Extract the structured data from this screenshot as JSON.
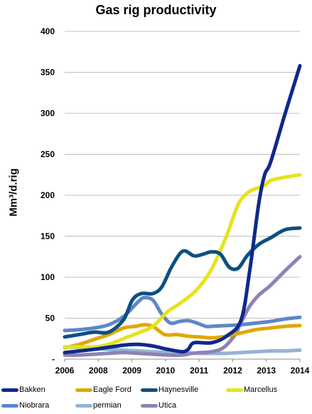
{
  "chart_data": {
    "type": "line",
    "title": "Gas rig productivity",
    "xlabel": "",
    "ylabel": "Mm³/d.rig",
    "xlim": [
      2006,
      2014
    ],
    "ylim": [
      0,
      400
    ],
    "xticks": [
      "2006",
      "2008",
      "2009",
      "2010",
      "2011",
      "2012",
      "2013",
      "2014"
    ],
    "yticks": [
      "-",
      "50",
      "100",
      "150",
      "200",
      "250",
      "300",
      "350",
      "400"
    ],
    "grid": "horizontal",
    "legend_position": "bottom",
    "series": [
      {
        "name": "Bakken",
        "color": "#0d2a8a",
        "points": [
          [
            2006,
            8
          ],
          [
            2007,
            12
          ],
          [
            2008,
            17
          ],
          [
            2008.5,
            18
          ],
          [
            2009,
            16
          ],
          [
            2009.5,
            12
          ],
          [
            2010,
            9
          ],
          [
            2010.2,
            12
          ],
          [
            2010.4,
            20
          ],
          [
            2011,
            20
          ],
          [
            2011.5,
            28
          ],
          [
            2012,
            48
          ],
          [
            2012.3,
            110
          ],
          [
            2012.6,
            190
          ],
          [
            2012.8,
            225
          ],
          [
            2013,
            240
          ],
          [
            2013.5,
            300
          ],
          [
            2014,
            358
          ]
        ]
      },
      {
        "name": "Eagle Ford",
        "color": "#e0a800",
        "points": [
          [
            2006,
            14
          ],
          [
            2006.5,
            18
          ],
          [
            2007,
            24
          ],
          [
            2007.5,
            30
          ],
          [
            2008,
            38
          ],
          [
            2008.4,
            40
          ],
          [
            2008.7,
            42
          ],
          [
            2009,
            40
          ],
          [
            2009.4,
            30
          ],
          [
            2009.8,
            30
          ],
          [
            2010.2,
            28
          ],
          [
            2010.6,
            27
          ],
          [
            2011,
            26
          ],
          [
            2011.5,
            28
          ],
          [
            2012,
            32
          ],
          [
            2012.5,
            36
          ],
          [
            2013,
            38
          ],
          [
            2013.5,
            40
          ],
          [
            2014,
            41
          ]
        ]
      },
      {
        "name": "Haynesville",
        "color": "#0d4f82",
        "points": [
          [
            2006,
            27
          ],
          [
            2006.5,
            30
          ],
          [
            2007,
            33
          ],
          [
            2007.5,
            33
          ],
          [
            2008,
            48
          ],
          [
            2008.3,
            72
          ],
          [
            2008.6,
            80
          ],
          [
            2009,
            80
          ],
          [
            2009.3,
            88
          ],
          [
            2009.6,
            110
          ],
          [
            2009.9,
            128
          ],
          [
            2010.1,
            132
          ],
          [
            2010.4,
            126
          ],
          [
            2010.7,
            128
          ],
          [
            2011,
            131
          ],
          [
            2011.3,
            128
          ],
          [
            2011.6,
            112
          ],
          [
            2011.9,
            111
          ],
          [
            2012.2,
            126
          ],
          [
            2012.6,
            140
          ],
          [
            2013,
            148
          ],
          [
            2013.5,
            158
          ],
          [
            2014,
            160
          ]
        ]
      },
      {
        "name": "Marcellus",
        "color": "#e4e41c",
        "points": [
          [
            2006,
            15
          ],
          [
            2006.5,
            15
          ],
          [
            2007,
            15
          ],
          [
            2007.5,
            18
          ],
          [
            2008,
            25
          ],
          [
            2008.5,
            32
          ],
          [
            2009,
            40
          ],
          [
            2009.5,
            58
          ],
          [
            2010,
            70
          ],
          [
            2010.5,
            85
          ],
          [
            2011,
            110
          ],
          [
            2011.5,
            150
          ],
          [
            2011.8,
            180
          ],
          [
            2012,
            195
          ],
          [
            2012.3,
            205
          ],
          [
            2012.8,
            212
          ],
          [
            2013,
            218
          ],
          [
            2013.5,
            222
          ],
          [
            2014,
            225
          ]
        ]
      },
      {
        "name": "Niobrara",
        "color": "#5f87c8",
        "points": [
          [
            2006,
            35
          ],
          [
            2006.5,
            36
          ],
          [
            2007,
            38
          ],
          [
            2007.5,
            42
          ],
          [
            2008,
            52
          ],
          [
            2008.5,
            70
          ],
          [
            2008.7,
            75
          ],
          [
            2009,
            72
          ],
          [
            2009.3,
            55
          ],
          [
            2009.6,
            44
          ],
          [
            2009.9,
            46
          ],
          [
            2010.2,
            47
          ],
          [
            2010.5,
            44
          ],
          [
            2010.8,
            40
          ],
          [
            2011,
            40
          ],
          [
            2011.5,
            41
          ],
          [
            2012,
            42
          ],
          [
            2012.5,
            44
          ],
          [
            2013,
            46
          ],
          [
            2013.5,
            49
          ],
          [
            2014,
            51
          ]
        ]
      },
      {
        "name": "permian",
        "color": "#95b3d7",
        "points": [
          [
            2006,
            15
          ],
          [
            2006.5,
            14
          ],
          [
            2007,
            13
          ],
          [
            2007.5,
            12
          ],
          [
            2008,
            11
          ],
          [
            2008.5,
            10
          ],
          [
            2009,
            9
          ],
          [
            2009.5,
            8
          ],
          [
            2010,
            8
          ],
          [
            2010.5,
            7
          ],
          [
            2011,
            7
          ],
          [
            2011.5,
            7
          ],
          [
            2012,
            8
          ],
          [
            2012.5,
            9
          ],
          [
            2013,
            10
          ],
          [
            2013.5,
            10
          ],
          [
            2014,
            11
          ]
        ]
      },
      {
        "name": "Utica",
        "color": "#8e82b4",
        "points": [
          [
            2006,
            5
          ],
          [
            2006.5,
            5
          ],
          [
            2007,
            6
          ],
          [
            2007.5,
            7
          ],
          [
            2008,
            8
          ],
          [
            2008.5,
            7
          ],
          [
            2009,
            6
          ],
          [
            2009.5,
            5
          ],
          [
            2010,
            5
          ],
          [
            2010.3,
            7
          ],
          [
            2010.6,
            8
          ],
          [
            2011,
            9
          ],
          [
            2011.4,
            14
          ],
          [
            2011.8,
            30
          ],
          [
            2012,
            45
          ],
          [
            2012.3,
            65
          ],
          [
            2012.6,
            78
          ],
          [
            2013,
            90
          ],
          [
            2013.5,
            108
          ],
          [
            2014,
            125
          ]
        ]
      }
    ]
  }
}
